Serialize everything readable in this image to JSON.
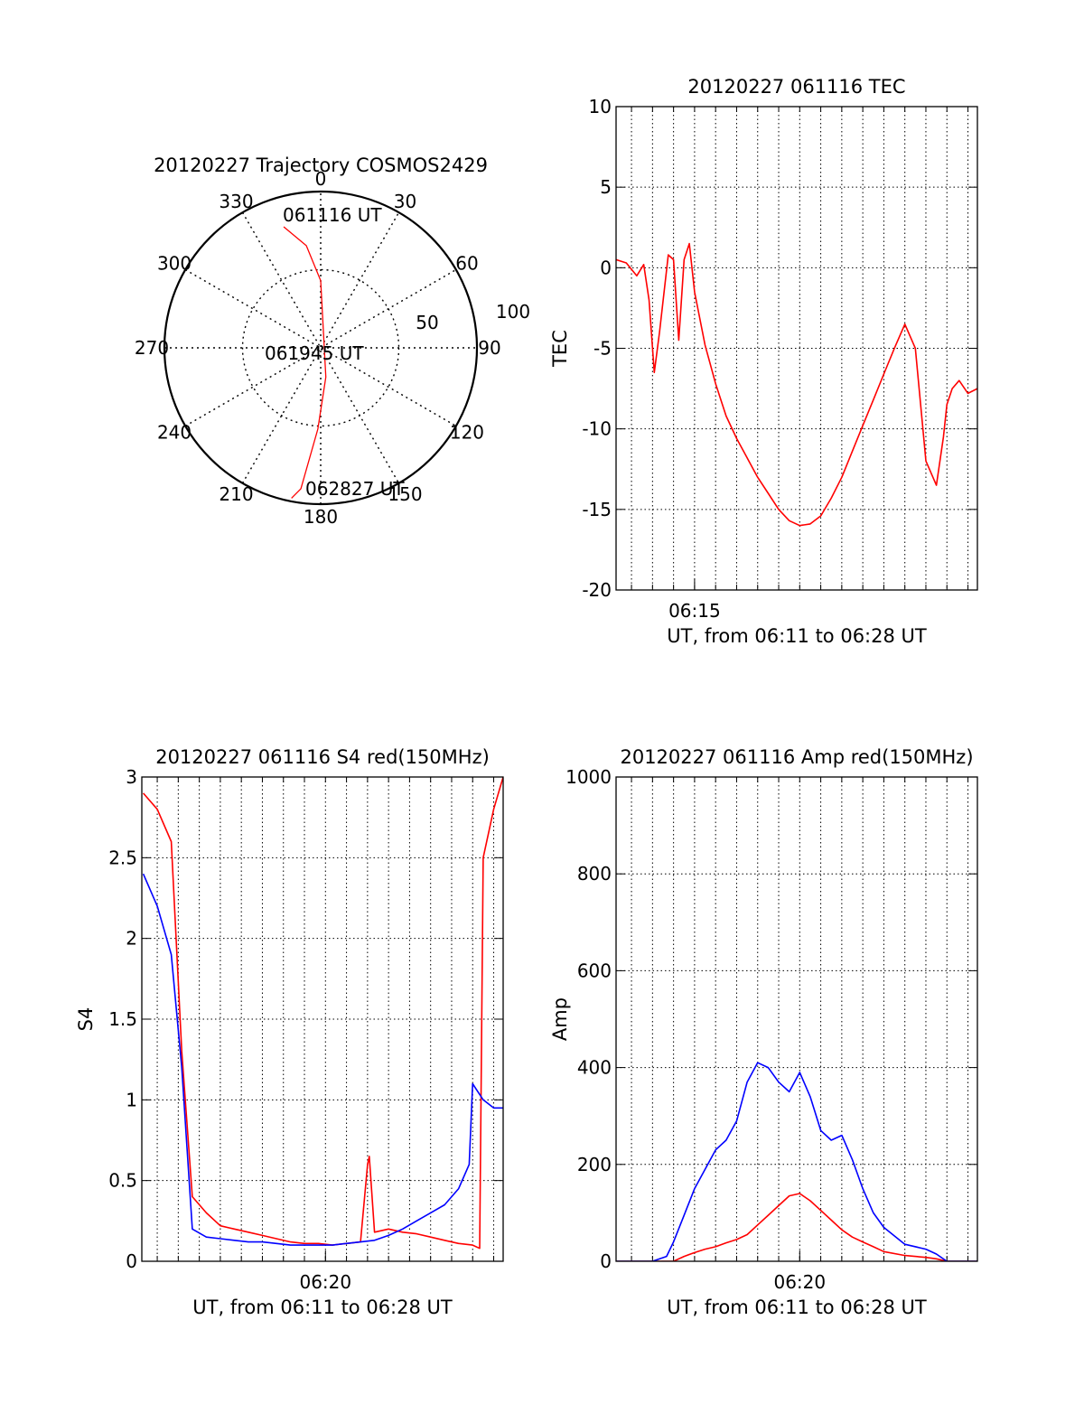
{
  "colors": {
    "red": "#ff0000",
    "blue": "#0000ff",
    "axis": "#000000",
    "grid": "#000000",
    "background": "#ffffff"
  },
  "chart_data": [
    {
      "id": "trajectory",
      "type": "polar",
      "title": "20120227 Trajectory COSMOS2429",
      "angle_labels": [
        "0",
        "30",
        "60",
        "90",
        "120",
        "150",
        "180",
        "210",
        "240",
        "270",
        "300",
        "330"
      ],
      "radius_labels": [
        "50",
        "100"
      ],
      "rlim": [
        0,
        100
      ],
      "grid": true,
      "direction": "clockwise from top",
      "series": [
        {
          "color": "red",
          "points": [
            [
              343,
              81
            ],
            [
              352,
              66
            ],
            [
              0,
              43
            ],
            [
              170,
              19
            ],
            [
              182,
              52
            ],
            [
              188,
              91
            ],
            [
              191,
              98
            ]
          ]
        }
      ],
      "annotations": [
        "061116 UT",
        "061945 UT",
        "062827 UT"
      ]
    },
    {
      "id": "tec",
      "type": "line",
      "title": "20120227 061116 TEC",
      "ylabel": "TEC",
      "xlabel": "UT, from 06:11 to 06:28 UT",
      "xlim": [
        "06:11:16",
        "06:28:27"
      ],
      "ylim": [
        -20,
        10
      ],
      "yticks": [
        "10",
        "5",
        "0",
        "-5",
        "-10",
        "-15",
        "-20"
      ],
      "xticks": [
        "06:15"
      ],
      "grid": true,
      "series": [
        {
          "color": "red",
          "x": [
            "06:11:16",
            "06:11:45",
            "06:12:15",
            "06:12:35",
            "06:12:50",
            "06:13:05",
            "06:13:20",
            "06:13:45",
            "06:14:00",
            "06:14:15",
            "06:14:30",
            "06:14:45",
            "06:15:00",
            "06:15:30",
            "06:16:00",
            "06:16:30",
            "06:17:00",
            "06:17:30",
            "06:18:00",
            "06:18:30",
            "06:19:00",
            "06:19:30",
            "06:20:00",
            "06:20:30",
            "06:21:00",
            "06:21:30",
            "06:22:00",
            "06:22:30",
            "06:23:00",
            "06:23:30",
            "06:24:00",
            "06:24:30",
            "06:25:00",
            "06:25:30",
            "06:26:00",
            "06:26:30",
            "06:26:50",
            "06:27:00",
            "06:27:15",
            "06:27:35",
            "06:28:00",
            "06:28:27"
          ],
          "values": [
            0.5,
            0.3,
            -0.5,
            0.2,
            -2,
            -6.5,
            -4,
            0.8,
            0.5,
            -4.5,
            0.5,
            1.5,
            -1.5,
            -4.8,
            -7.2,
            -9.2,
            -10.6,
            -11.8,
            -13,
            -14,
            -15,
            -15.7,
            -16,
            -15.9,
            -15.4,
            -14.3,
            -13,
            -11.4,
            -9.8,
            -8.2,
            -6.6,
            -5,
            -3.5,
            -5,
            -12,
            -13.5,
            -10.5,
            -8.5,
            -7.5,
            -7,
            -7.8,
            -7.5
          ]
        }
      ]
    },
    {
      "id": "s4",
      "type": "line",
      "title": "20120227 061116 S4 red(150MHz)",
      "ylabel": "S4",
      "xlabel": "UT, from 06:11 to 06:28 UT",
      "xlim": [
        "06:11:16",
        "06:28:27"
      ],
      "ylim": [
        0,
        3
      ],
      "yticks": [
        "3",
        "2.5",
        "2",
        "1.5",
        "1",
        "0.5",
        "0"
      ],
      "xticks": [
        "06:20"
      ],
      "grid": true,
      "series": [
        {
          "color": "red",
          "x": [
            "06:11:20",
            "06:12:00",
            "06:12:40",
            "06:13:10",
            "06:13:40",
            "06:14:20",
            "06:15:00",
            "06:15:40",
            "06:16:20",
            "06:17:00",
            "06:17:40",
            "06:18:20",
            "06:19:00",
            "06:19:40",
            "06:20:20",
            "06:21:00",
            "06:21:40",
            "06:22:00",
            "06:22:05",
            "06:22:20",
            "06:23:00",
            "06:23:40",
            "06:24:20",
            "06:25:00",
            "06:25:40",
            "06:26:20",
            "06:27:00",
            "06:27:20",
            "06:27:30",
            "06:28:00",
            "06:28:27"
          ],
          "values": [
            2.9,
            2.8,
            2.6,
            1.3,
            0.4,
            0.3,
            0.22,
            0.2,
            0.18,
            0.16,
            0.14,
            0.12,
            0.11,
            0.11,
            0.1,
            0.11,
            0.12,
            0.6,
            0.65,
            0.18,
            0.2,
            0.18,
            0.17,
            0.15,
            0.13,
            0.11,
            0.1,
            0.08,
            2.5,
            2.8,
            3.0
          ]
        },
        {
          "color": "blue",
          "x": [
            "06:11:20",
            "06:12:00",
            "06:12:40",
            "06:13:10",
            "06:13:40",
            "06:14:20",
            "06:15:00",
            "06:15:40",
            "06:16:20",
            "06:17:00",
            "06:17:40",
            "06:18:20",
            "06:19:00",
            "06:19:40",
            "06:20:20",
            "06:21:00",
            "06:21:40",
            "06:22:20",
            "06:23:00",
            "06:23:40",
            "06:24:20",
            "06:25:00",
            "06:25:40",
            "06:26:20",
            "06:26:50",
            "06:27:00",
            "06:27:30",
            "06:28:00",
            "06:28:27"
          ],
          "values": [
            2.4,
            2.2,
            1.9,
            1.2,
            0.2,
            0.15,
            0.14,
            0.13,
            0.12,
            0.12,
            0.11,
            0.1,
            0.1,
            0.1,
            0.1,
            0.11,
            0.12,
            0.13,
            0.16,
            0.2,
            0.25,
            0.3,
            0.35,
            0.45,
            0.6,
            1.1,
            1.0,
            0.95,
            0.95
          ]
        }
      ]
    },
    {
      "id": "amp",
      "type": "line",
      "title": "20120227 061116 Amp red(150MHz)",
      "ylabel": "Amp",
      "xlabel": "UT, from 06:11 to 06:28 UT",
      "xlim": [
        "06:11:16",
        "06:28:27"
      ],
      "ylim": [
        0,
        1000
      ],
      "yticks": [
        "1000",
        "800",
        "600",
        "400",
        "200",
        "0"
      ],
      "xticks": [
        "06:20"
      ],
      "grid": true,
      "series": [
        {
          "color": "red",
          "x": [
            "06:11:16",
            "06:14:00",
            "06:14:30",
            "06:15:00",
            "06:15:30",
            "06:16:00",
            "06:16:30",
            "06:17:00",
            "06:17:30",
            "06:18:00",
            "06:18:30",
            "06:19:00",
            "06:19:30",
            "06:20:00",
            "06:20:30",
            "06:21:00",
            "06:21:30",
            "06:22:00",
            "06:22:30",
            "06:23:00",
            "06:23:30",
            "06:24:00",
            "06:25:00",
            "06:26:00",
            "06:26:30",
            "06:27:00",
            "06:28:27"
          ],
          "values": [
            0,
            0,
            10,
            18,
            25,
            30,
            38,
            45,
            55,
            75,
            95,
            115,
            135,
            140,
            125,
            105,
            85,
            65,
            50,
            40,
            30,
            20,
            12,
            8,
            5,
            0,
            0
          ]
        },
        {
          "color": "blue",
          "x": [
            "06:11:16",
            "06:13:00",
            "06:13:40",
            "06:14:00",
            "06:14:30",
            "06:15:00",
            "06:15:30",
            "06:16:00",
            "06:16:30",
            "06:17:00",
            "06:17:30",
            "06:18:00",
            "06:18:30",
            "06:19:00",
            "06:19:30",
            "06:20:00",
            "06:20:30",
            "06:21:00",
            "06:21:30",
            "06:22:00",
            "06:22:30",
            "06:23:00",
            "06:23:30",
            "06:24:00",
            "06:25:00",
            "06:26:00",
            "06:26:30",
            "06:27:00",
            "06:28:27"
          ],
          "values": [
            0,
            0,
            10,
            40,
            95,
            150,
            190,
            230,
            250,
            290,
            370,
            410,
            400,
            370,
            350,
            390,
            340,
            270,
            250,
            260,
            210,
            150,
            100,
            70,
            35,
            25,
            15,
            0,
            0
          ]
        }
      ]
    }
  ]
}
